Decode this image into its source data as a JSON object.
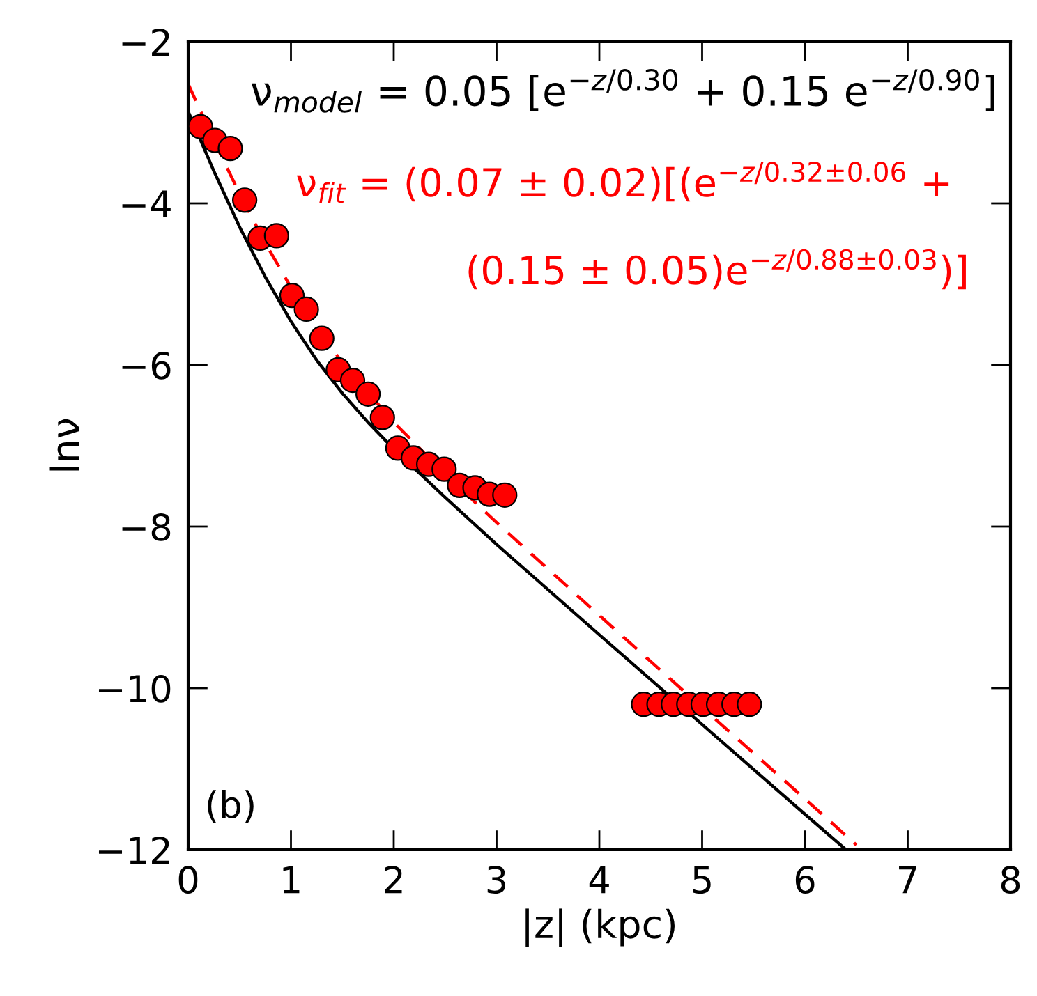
{
  "chart_data": {
    "type": "scatter",
    "xlabel": "|z| (kpc)",
    "ylabel": "lnν",
    "xlim": [
      0,
      8
    ],
    "ylim": [
      -12,
      -2
    ],
    "xticks": [
      0,
      1,
      2,
      3,
      4,
      5,
      6,
      7,
      8
    ],
    "yticks": [
      -12,
      -10,
      -8,
      -6,
      -4,
      -2
    ],
    "grid": false,
    "legend": false,
    "marker": "circle",
    "series": [
      {
        "type": "line",
        "color": "#000000",
        "line_style": "solid",
        "marker": "none",
        "x": [
          0,
          0.25,
          0.5,
          0.75,
          1,
          1.25,
          1.5,
          1.75,
          2,
          2.5,
          3,
          4,
          5,
          6,
          6.4
        ],
        "values": [
          -2.86,
          -3.6,
          -4.29,
          -4.91,
          -5.46,
          -5.94,
          -6.35,
          -6.71,
          -7.04,
          -7.64,
          -8.22,
          -9.34,
          -10.45,
          -11.56,
          -12
        ]
      },
      {
        "type": "line",
        "color": "#ff0000",
        "line_style": "dashed",
        "marker": "none",
        "x": [
          0,
          0.25,
          0.5,
          0.75,
          1,
          1.25,
          1.5,
          2,
          2.5,
          3,
          4,
          5,
          6,
          6.5
        ],
        "values": [
          -2.52,
          -3.22,
          -3.88,
          -4.49,
          -5.04,
          -5.54,
          -5.97,
          -6.71,
          -7.35,
          -7.95,
          -9.1,
          -10.24,
          -11.37,
          -11.94
        ]
      },
      {
        "color": "#ff0000",
        "x": [
          0.12,
          0.26,
          0.41,
          0.55,
          0.7,
          0.86,
          1.01,
          1.15,
          1.3,
          1.46,
          1.6,
          1.75,
          1.89,
          2.04,
          2.19,
          2.34,
          2.49,
          2.64,
          2.79,
          2.93,
          3.08,
          4.43,
          4.58,
          4.72,
          4.87,
          5.01,
          5.16,
          5.31,
          5.46
        ],
        "values": [
          -3.05,
          -3.22,
          -3.32,
          -3.96,
          -4.43,
          -4.4,
          -5.14,
          -5.31,
          -5.67,
          -6.06,
          -6.19,
          -6.36,
          -6.65,
          -7.03,
          -7.15,
          -7.23,
          -7.29,
          -7.49,
          -7.52,
          -7.6,
          -7.61,
          -10.2,
          -10.2,
          -10.2,
          -10.2,
          -10.2,
          -10.2,
          -10.2,
          -10.2
        ]
      }
    ],
    "annotations": [
      "ν$_{model}$ = 0.05 [e$^{−z/0.30}$ + 0.15 e$^{−z/0.90}$]",
      "ν$_{fit}$ = (0.07 ± 0.02)[(e$^{−z/0.32±0.06}$ +",
      "(0.15 ± 0.05)e$^{−z/0.88±0.03}$)]",
      "(b)"
    ]
  }
}
